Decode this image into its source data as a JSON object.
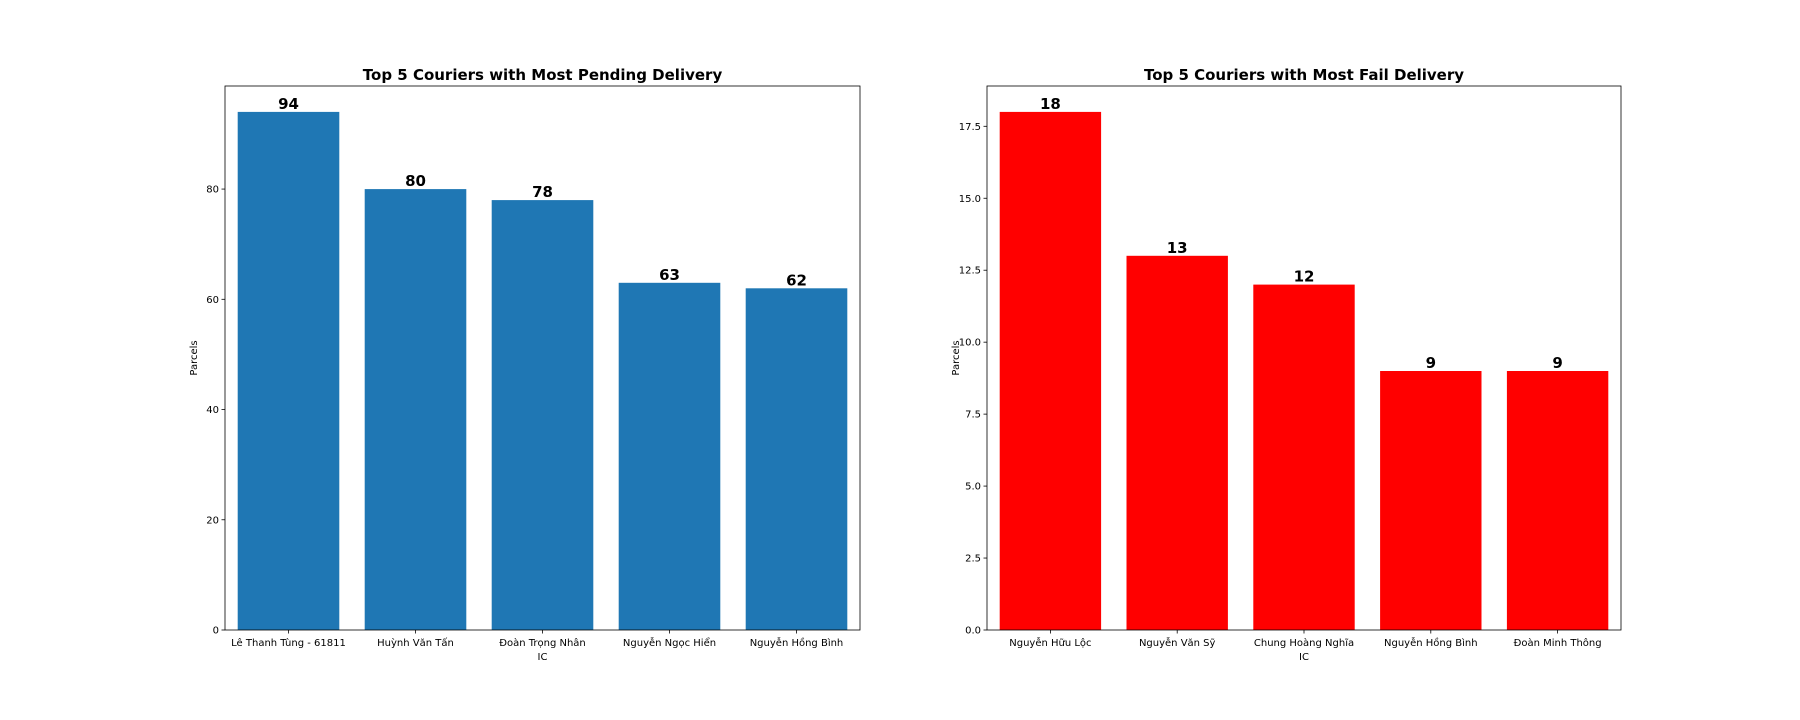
{
  "chart_data": [
    {
      "type": "bar",
      "title": "Top 5 Couriers with Most Pending Delivery",
      "xlabel": "IC",
      "ylabel": "Parcels",
      "categories": [
        "Lê Thanh Tùng - 61811",
        "Huỳnh Văn Tấn",
        "Đoàn Trọng Nhân",
        "Nguyễn Ngọc Hiển",
        "Nguyễn Hồng Bình"
      ],
      "values": [
        94,
        80,
        78,
        63,
        62
      ],
      "ylim": [
        0,
        98.7
      ],
      "yticks": [
        0,
        20,
        40,
        60,
        80
      ],
      "ytick_labels": [
        "0",
        "20",
        "40",
        "60",
        "80"
      ],
      "color": "#1f77b4",
      "grid": false
    },
    {
      "type": "bar",
      "title": "Top 5 Couriers with Most Fail Delivery",
      "xlabel": "IC",
      "ylabel": "Parcels",
      "categories": [
        "Nguyễn Hữu Lộc",
        "Nguyễn Văn Sỹ",
        "Chung Hoàng Nghĩa",
        "Nguyễn Hồng Bình",
        "Đoàn Minh Thông"
      ],
      "values": [
        18,
        13,
        12,
        9,
        9
      ],
      "ylim": [
        0,
        18.9
      ],
      "yticks": [
        0,
        2.5,
        5,
        7.5,
        10,
        12.5,
        15,
        17.5
      ],
      "ytick_labels": [
        "0.0",
        "2.5",
        "5.0",
        "7.5",
        "10.0",
        "12.5",
        "15.0",
        "17.5"
      ],
      "color": "#ff0000",
      "grid": false
    }
  ]
}
